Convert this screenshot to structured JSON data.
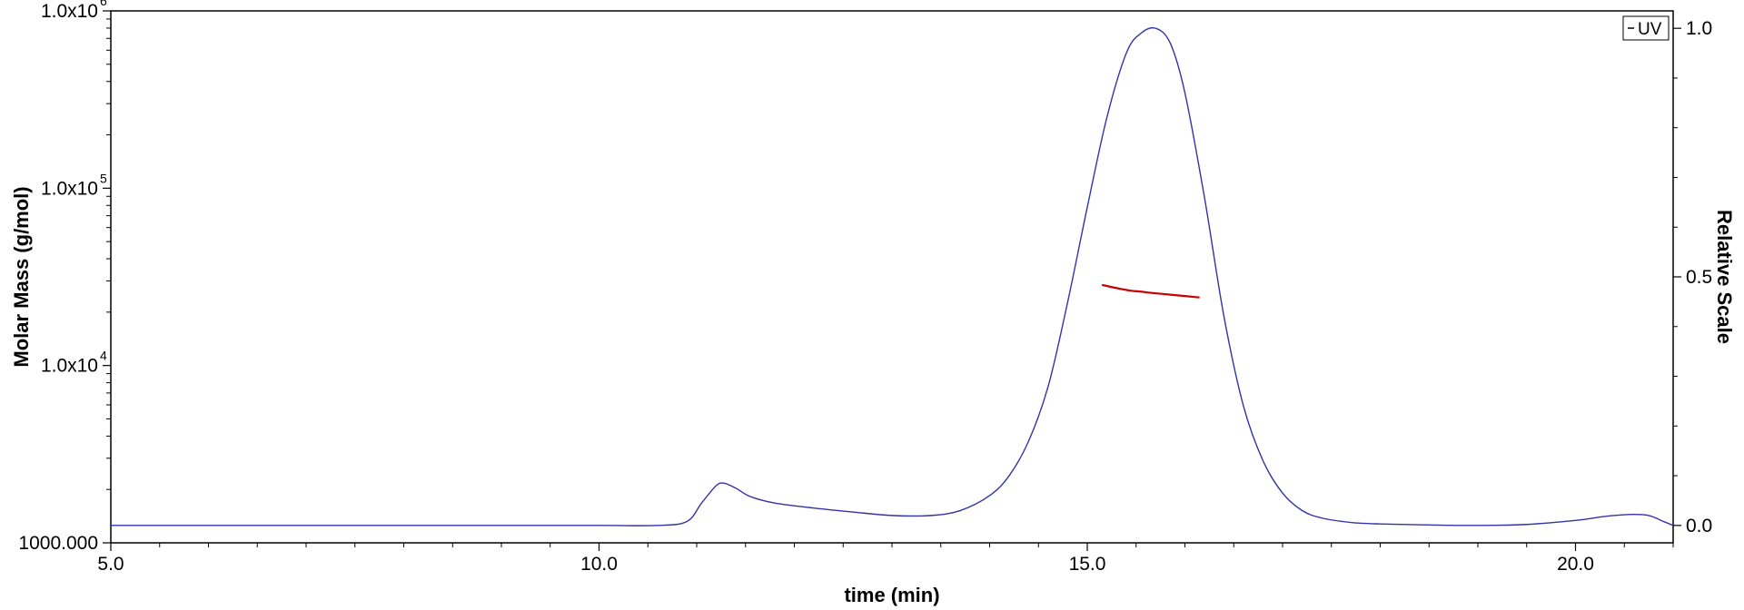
{
  "chart_data": {
    "type": "line",
    "xlabel": "time (min)",
    "ylabel_left": "Molar Mass (g/mol)",
    "ylabel_right": "Relative Scale",
    "xlim": [
      5.0,
      21.0
    ],
    "ylim_left": [
      1000,
      1000000
    ],
    "ylim_right": [
      -0.035,
      1.035
    ],
    "left_scale": "log",
    "x_ticks": [
      {
        "value": 5.0,
        "label": "5.0"
      },
      {
        "value": 10.0,
        "label": "10.0"
      },
      {
        "value": 15.0,
        "label": "15.0"
      },
      {
        "value": 20.0,
        "label": "20.0"
      }
    ],
    "y_left_ticks": [
      {
        "value": 1000,
        "label": "1000.000",
        "sup": ""
      },
      {
        "value": 10000,
        "label": "1.0x10",
        "sup": "4"
      },
      {
        "value": 100000,
        "label": "1.0x10",
        "sup": "5"
      },
      {
        "value": 1000000,
        "label": "1.0x10",
        "sup": "6"
      }
    ],
    "y_right_ticks": [
      {
        "value": 0.0,
        "label": "0.0"
      },
      {
        "value": 0.5,
        "label": "0.5"
      },
      {
        "value": 1.0,
        "label": "1.0"
      }
    ],
    "legend": {
      "label": "UV",
      "placement": "top-right"
    },
    "series": [
      {
        "name": "UV",
        "axis": "right",
        "color": "#3333aa",
        "x": [
          5.0,
          6.0,
          7.0,
          8.0,
          9.0,
          10.0,
          10.6,
          10.9,
          11.05,
          11.2,
          11.28,
          11.4,
          11.55,
          11.8,
          12.2,
          12.6,
          13.0,
          13.4,
          13.7,
          14.0,
          14.2,
          14.4,
          14.6,
          14.8,
          15.0,
          15.2,
          15.4,
          15.55,
          15.7,
          15.85,
          16.0,
          16.2,
          16.4,
          16.6,
          16.8,
          17.0,
          17.2,
          17.4,
          17.7,
          18.0,
          18.5,
          19.0,
          19.5,
          20.0,
          20.3,
          20.55,
          20.75,
          20.9,
          21.0
        ],
        "y": [
          0.0,
          0.0,
          0.0,
          0.0,
          0.0,
          0.0,
          0.0,
          0.008,
          0.045,
          0.08,
          0.085,
          0.075,
          0.058,
          0.045,
          0.035,
          0.027,
          0.02,
          0.02,
          0.03,
          0.06,
          0.1,
          0.17,
          0.28,
          0.45,
          0.64,
          0.82,
          0.95,
          0.99,
          1.0,
          0.97,
          0.87,
          0.66,
          0.42,
          0.24,
          0.13,
          0.065,
          0.03,
          0.015,
          0.006,
          0.003,
          0.001,
          0.0,
          0.002,
          0.01,
          0.018,
          0.022,
          0.02,
          0.008,
          0.0
        ]
      },
      {
        "name": "",
        "axis": "left",
        "color": "#cc0000",
        "x": [
          15.15,
          15.25,
          15.35,
          15.45,
          15.55,
          15.65,
          15.75,
          15.85,
          15.95,
          16.05,
          16.15
        ],
        "y": [
          28500,
          27700,
          27000,
          26400,
          26100,
          25700,
          25400,
          25100,
          24800,
          24500,
          24200
        ]
      }
    ]
  }
}
